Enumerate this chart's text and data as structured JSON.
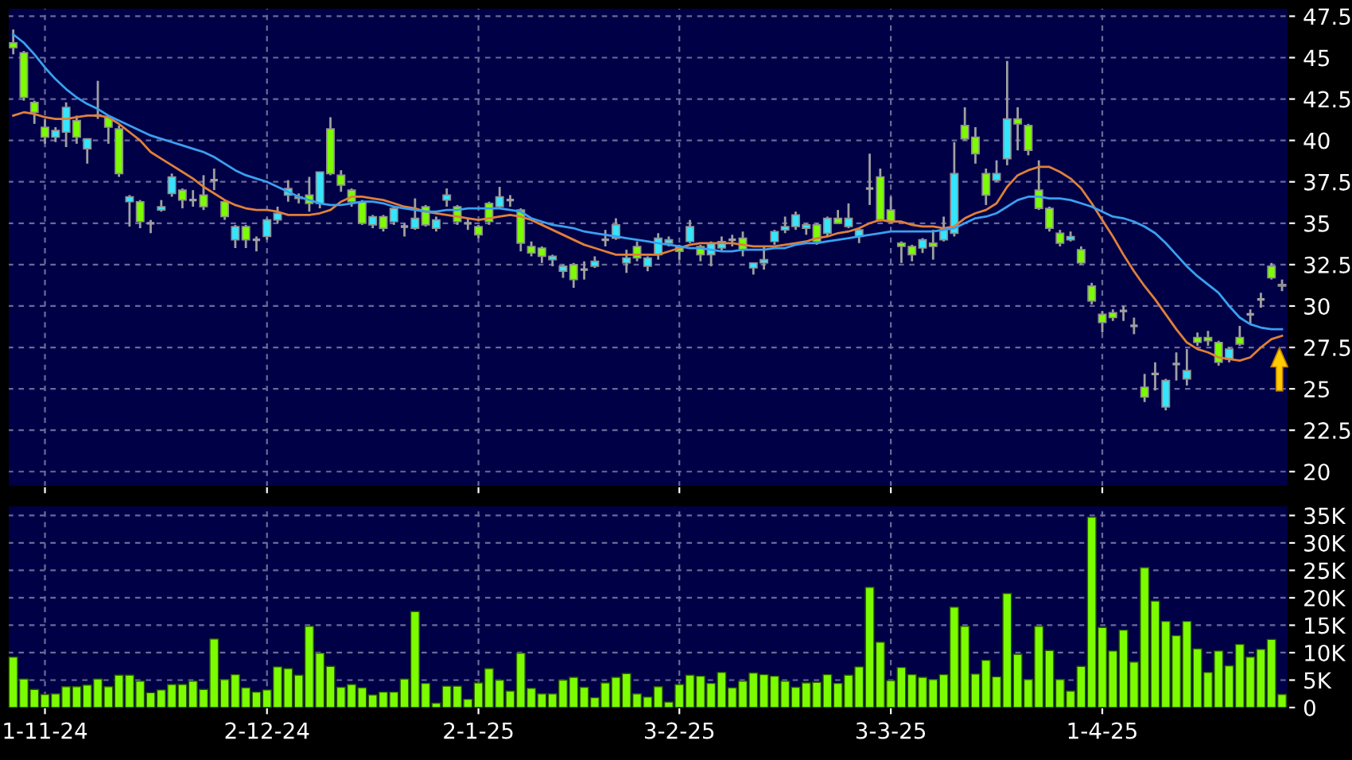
{
  "chart_data": [
    {
      "type": "candlestick",
      "categories": [
        null,
        null,
        null,
        null,
        null,
        null,
        null,
        null,
        null,
        null,
        null,
        null,
        null,
        null,
        null,
        null,
        null,
        null,
        null,
        null,
        null,
        null,
        null,
        null,
        null,
        null,
        null,
        null,
        null,
        null,
        null,
        null,
        null,
        null,
        null,
        null,
        null,
        null,
        null,
        null,
        null,
        null,
        null,
        null,
        null,
        null,
        null,
        null,
        null,
        null,
        null,
        null,
        null,
        null,
        null,
        null,
        null,
        null,
        null,
        null,
        null,
        null,
        null,
        null,
        null,
        null,
        null,
        null,
        null,
        null,
        null,
        null,
        null,
        null,
        null,
        null,
        null,
        null,
        null,
        null,
        null,
        null,
        null,
        null,
        null,
        null,
        null,
        null,
        null,
        null,
        null,
        null,
        null,
        null,
        null,
        null,
        null,
        null,
        null,
        null,
        null,
        null,
        null,
        null,
        null,
        null,
        null,
        null,
        null,
        null,
        null,
        null,
        null,
        null,
        null,
        null,
        null,
        null,
        null,
        null,
        null
      ],
      "ohlc": [
        [
          45.9,
          46.7,
          45.2,
          45.6
        ],
        [
          45.3,
          45.4,
          42.4,
          42.6
        ],
        [
          42.3,
          42.4,
          41.0,
          41.7
        ],
        [
          40.8,
          41.3,
          39.8,
          40.2
        ],
        [
          40.2,
          40.8,
          39.9,
          40.6
        ],
        [
          40.5,
          42.3,
          39.6,
          42.0
        ],
        [
          41.2,
          41.5,
          39.8,
          40.2
        ],
        [
          39.5,
          40.1,
          38.6,
          40.1
        ],
        [
          41.5,
          43.6,
          41.3,
          41.5
        ],
        [
          41.4,
          41.5,
          39.8,
          40.8
        ],
        [
          40.7,
          40.9,
          37.8,
          38.0
        ],
        [
          36.3,
          36.7,
          34.8,
          36.6
        ],
        [
          36.3,
          36.4,
          34.7,
          35.1
        ],
        [
          35.0,
          35.2,
          34.4,
          35.0
        ],
        [
          35.8,
          36.4,
          35.7,
          36.0
        ],
        [
          36.8,
          38.0,
          36.6,
          37.8
        ],
        [
          37.0,
          37.1,
          35.9,
          36.4
        ],
        [
          36.4,
          37.0,
          36.0,
          36.4
        ],
        [
          36.7,
          37.9,
          35.8,
          36.0
        ],
        [
          37.6,
          38.3,
          37.0,
          37.6
        ],
        [
          36.3,
          36.4,
          35.2,
          35.4
        ],
        [
          34.0,
          34.9,
          33.5,
          34.8
        ],
        [
          34.8,
          34.9,
          33.5,
          34.0
        ],
        [
          34.0,
          34.2,
          33.3,
          34.0
        ],
        [
          34.2,
          35.3,
          34.0,
          35.2
        ],
        [
          35.2,
          36.0,
          35.0,
          35.6
        ],
        [
          36.7,
          37.6,
          36.3,
          37.1
        ],
        [
          36.5,
          36.8,
          36.2,
          36.6
        ],
        [
          36.7,
          37.8,
          35.7,
          36.2
        ],
        [
          36.2,
          38.1,
          35.9,
          38.1
        ],
        [
          40.7,
          41.4,
          37.9,
          38.0
        ],
        [
          37.9,
          38.2,
          36.9,
          37.3
        ],
        [
          37.0,
          37.1,
          36.0,
          36.3
        ],
        [
          36.3,
          36.4,
          34.9,
          35.0
        ],
        [
          34.9,
          35.5,
          34.7,
          35.4
        ],
        [
          35.4,
          35.5,
          34.5,
          34.7
        ],
        [
          35.1,
          36.0,
          34.9,
          35.9
        ],
        [
          34.8,
          35.0,
          34.2,
          34.8
        ],
        [
          34.7,
          36.5,
          34.6,
          35.3
        ],
        [
          36.0,
          36.1,
          34.8,
          34.9
        ],
        [
          34.7,
          35.4,
          34.5,
          35.2
        ],
        [
          36.4,
          37.1,
          36.0,
          36.7
        ],
        [
          36.0,
          36.1,
          34.9,
          35.1
        ],
        [
          35.0,
          35.3,
          34.6,
          35.0
        ],
        [
          34.8,
          34.9,
          34.1,
          34.3
        ],
        [
          36.2,
          36.3,
          34.9,
          35.1
        ],
        [
          36.0,
          37.2,
          35.9,
          36.6
        ],
        [
          36.4,
          36.7,
          36.0,
          36.4
        ],
        [
          35.8,
          35.9,
          33.3,
          33.8
        ],
        [
          33.6,
          33.9,
          33.0,
          33.2
        ],
        [
          33.5,
          33.6,
          32.6,
          33.0
        ],
        [
          32.8,
          33.1,
          32.4,
          33.0
        ],
        [
          32.1,
          32.5,
          31.7,
          32.4
        ],
        [
          32.5,
          32.6,
          31.1,
          31.6
        ],
        [
          32.2,
          32.7,
          31.6,
          32.2
        ],
        [
          32.4,
          33.0,
          32.3,
          32.7
        ],
        [
          34.0,
          34.6,
          33.6,
          34.0
        ],
        [
          34.1,
          35.3,
          34.0,
          34.9
        ],
        [
          32.6,
          33.4,
          32.0,
          32.9
        ],
        [
          33.6,
          33.9,
          32.7,
          32.9
        ],
        [
          32.4,
          33.0,
          32.1,
          32.9
        ],
        [
          33.1,
          34.4,
          32.8,
          34.1
        ],
        [
          33.8,
          34.2,
          33.6,
          34.0
        ],
        [
          33.6,
          33.7,
          32.8,
          33.3
        ],
        [
          33.9,
          35.2,
          33.8,
          34.8
        ],
        [
          33.6,
          33.7,
          32.7,
          33.1
        ],
        [
          33.1,
          33.9,
          32.4,
          33.8
        ],
        [
          33.5,
          34.2,
          33.3,
          33.9
        ],
        [
          34.0,
          34.3,
          33.6,
          34.0
        ],
        [
          34.1,
          34.5,
          33.0,
          33.4
        ],
        [
          32.3,
          32.6,
          31.9,
          32.6
        ],
        [
          32.6,
          33.6,
          32.2,
          32.8
        ],
        [
          33.9,
          34.6,
          33.7,
          34.5
        ],
        [
          34.6,
          35.4,
          34.4,
          34.8
        ],
        [
          34.8,
          35.7,
          34.6,
          35.5
        ],
        [
          34.7,
          35.0,
          34.3,
          34.9
        ],
        [
          34.9,
          35.0,
          33.7,
          33.9
        ],
        [
          34.4,
          35.4,
          34.2,
          35.3
        ],
        [
          35.3,
          35.8,
          35.0,
          35.0
        ],
        [
          34.8,
          36.2,
          34.7,
          35.3
        ],
        [
          34.2,
          34.7,
          33.8,
          34.6
        ],
        [
          37.1,
          39.2,
          36.1,
          37.1
        ],
        [
          37.8,
          38.3,
          35.1,
          35.2
        ],
        [
          35.8,
          36.6,
          35.0,
          35.1
        ],
        [
          33.8,
          33.9,
          32.6,
          33.6
        ],
        [
          33.6,
          33.7,
          32.7,
          33.1
        ],
        [
          33.5,
          34.1,
          33.2,
          34.0
        ],
        [
          33.8,
          34.6,
          32.8,
          33.6
        ],
        [
          34.0,
          35.4,
          33.9,
          34.6
        ],
        [
          34.4,
          39.9,
          34.2,
          38.0
        ],
        [
          40.9,
          42.0,
          40.0,
          40.1
        ],
        [
          40.2,
          40.8,
          38.6,
          39.2
        ],
        [
          38.0,
          38.3,
          36.1,
          36.7
        ],
        [
          37.6,
          38.8,
          37.5,
          38.0
        ],
        [
          38.9,
          44.8,
          38.5,
          41.3
        ],
        [
          41.3,
          42.0,
          39.4,
          41.0
        ],
        [
          40.9,
          41.0,
          39.1,
          39.4
        ],
        [
          37.0,
          38.8,
          35.8,
          35.9
        ],
        [
          35.9,
          36.0,
          34.5,
          34.7
        ],
        [
          34.4,
          34.6,
          33.6,
          33.8
        ],
        [
          34.0,
          34.5,
          33.9,
          34.2
        ],
        [
          33.4,
          33.6,
          32.5,
          32.6
        ],
        [
          31.2,
          31.4,
          30.1,
          30.3
        ],
        [
          29.5,
          29.7,
          28.4,
          29.0
        ],
        [
          29.6,
          29.8,
          29.1,
          29.3
        ],
        [
          29.7,
          30.0,
          29.1,
          29.7
        ],
        [
          28.8,
          29.3,
          28.3,
          28.8
        ],
        [
          25.1,
          25.9,
          24.2,
          24.5
        ],
        [
          25.9,
          26.6,
          24.9,
          25.9
        ],
        [
          23.9,
          25.6,
          23.7,
          25.5
        ],
        [
          26.5,
          27.2,
          25.5,
          26.5
        ],
        [
          25.6,
          27.4,
          25.2,
          26.1
        ],
        [
          28.1,
          28.4,
          27.6,
          27.8
        ],
        [
          28.1,
          28.5,
          27.6,
          27.9
        ],
        [
          27.8,
          27.9,
          26.4,
          26.6
        ],
        [
          26.8,
          27.5,
          26.6,
          27.4
        ],
        [
          28.1,
          28.8,
          27.6,
          27.7
        ],
        [
          29.5,
          29.8,
          28.9,
          29.5
        ],
        [
          30.4,
          30.8,
          29.9,
          30.4
        ],
        [
          32.4,
          32.6,
          31.6,
          31.7
        ],
        [
          31.2,
          31.6,
          30.9,
          31.3
        ]
      ],
      "colors": [
        "#7cfc00",
        "#7cfc00",
        "#7cfc00",
        "#7cfc00",
        "#33e6ff",
        "#33e6ff",
        "#7cfc00",
        "#33e6ff",
        "#a0a0a0",
        "#7cfc00",
        "#7cfc00",
        "#33e6ff",
        "#7cfc00",
        "#a0a0a0",
        "#33e6ff",
        "#33e6ff",
        "#7cfc00",
        "#a0a0a0",
        "#7cfc00",
        "#a0a0a0",
        "#7cfc00",
        "#33e6ff",
        "#7cfc00",
        "#a0a0a0",
        "#33e6ff",
        "#33e6ff",
        "#33e6ff",
        "#33e6ff",
        "#7cfc00",
        "#33e6ff",
        "#7cfc00",
        "#7cfc00",
        "#7cfc00",
        "#7cfc00",
        "#33e6ff",
        "#7cfc00",
        "#33e6ff",
        "#a0a0a0",
        "#33e6ff",
        "#7cfc00",
        "#33e6ff",
        "#33e6ff",
        "#7cfc00",
        "#a0a0a0",
        "#7cfc00",
        "#7cfc00",
        "#33e6ff",
        "#a0a0a0",
        "#7cfc00",
        "#7cfc00",
        "#7cfc00",
        "#33e6ff",
        "#33e6ff",
        "#7cfc00",
        "#a0a0a0",
        "#33e6ff",
        "#a0a0a0",
        "#33e6ff",
        "#33e6ff",
        "#7cfc00",
        "#33e6ff",
        "#33e6ff",
        "#33e6ff",
        "#7cfc00",
        "#33e6ff",
        "#7cfc00",
        "#33e6ff",
        "#33e6ff",
        "#a0a0a0",
        "#7cfc00",
        "#33e6ff",
        "#33e6ff",
        "#33e6ff",
        "#33e6ff",
        "#33e6ff",
        "#33e6ff",
        "#7cfc00",
        "#33e6ff",
        "#7cfc00",
        "#33e6ff",
        "#33e6ff",
        "#a0a0a0",
        "#7cfc00",
        "#7cfc00",
        "#7cfc00",
        "#7cfc00",
        "#33e6ff",
        "#7cfc00",
        "#33e6ff",
        "#33e6ff",
        "#7cfc00",
        "#7cfc00",
        "#7cfc00",
        "#33e6ff",
        "#33e6ff",
        "#7cfc00",
        "#7cfc00",
        "#7cfc00",
        "#7cfc00",
        "#7cfc00",
        "#33e6ff",
        "#7cfc00",
        "#7cfc00",
        "#7cfc00",
        "#7cfc00",
        "#a0a0a0",
        "#a0a0a0",
        "#7cfc00",
        "#a0a0a0",
        "#33e6ff",
        "#a0a0a0",
        "#33e6ff",
        "#7cfc00",
        "#7cfc00",
        "#7cfc00",
        "#33e6ff",
        "#7cfc00",
        "#a0a0a0",
        "#a0a0a0",
        "#7cfc00",
        "#a0a0a0"
      ],
      "series": [
        {
          "type": "line",
          "color": "#e0803a",
          "values": [
            41.5,
            41.7,
            41.6,
            41.4,
            41.3,
            41.3,
            41.4,
            41.5,
            41.5,
            41.4,
            41.0,
            40.5,
            40.0,
            39.3,
            38.9,
            38.5,
            38.1,
            37.7,
            37.2,
            36.8,
            36.4,
            36.1,
            35.9,
            35.8,
            35.8,
            35.7,
            35.5,
            35.5,
            35.5,
            35.6,
            35.8,
            36.3,
            36.6,
            36.6,
            36.5,
            36.4,
            36.2,
            36.0,
            35.9,
            35.7,
            35.6,
            35.5,
            35.4,
            35.3,
            35.2,
            35.3,
            35.4,
            35.5,
            35.4,
            35.2,
            34.9,
            34.6,
            34.3,
            34.0,
            33.7,
            33.5,
            33.3,
            33.1,
            33.1,
            33.1,
            33.1,
            33.1,
            33.3,
            33.5,
            33.7,
            33.8,
            33.8,
            33.8,
            33.8,
            33.7,
            33.6,
            33.6,
            33.6,
            33.7,
            33.8,
            33.9,
            34.1,
            34.2,
            34.4,
            34.5,
            34.7,
            35.0,
            35.2,
            35.1,
            35.1,
            34.9,
            34.8,
            34.8,
            34.7,
            34.8,
            35.3,
            35.6,
            35.8,
            36.2,
            37.2,
            37.9,
            38.2,
            38.4,
            38.4,
            38.1,
            37.7,
            37.1,
            36.2,
            35.2,
            34.2,
            33.1,
            32.1,
            31.2,
            30.4,
            29.5,
            28.6,
            27.8,
            27.4,
            27.2,
            26.9,
            26.8,
            26.7,
            26.9,
            27.5,
            28.0,
            28.2
          ]
        },
        {
          "type": "line",
          "color": "#3aa0f0",
          "values": [
            46.4,
            45.9,
            45.2,
            44.4,
            43.7,
            43.1,
            42.6,
            42.2,
            41.9,
            41.5,
            41.2,
            40.9,
            40.6,
            40.3,
            40.1,
            39.9,
            39.7,
            39.5,
            39.3,
            39.0,
            38.6,
            38.2,
            37.9,
            37.7,
            37.5,
            37.2,
            36.9,
            36.6,
            36.4,
            36.2,
            36.1,
            36.1,
            36.2,
            36.3,
            36.3,
            36.2,
            36.0,
            35.9,
            35.8,
            35.7,
            35.7,
            35.8,
            35.8,
            35.9,
            35.9,
            35.9,
            35.9,
            35.8,
            35.7,
            35.3,
            35.1,
            34.9,
            34.8,
            34.7,
            34.5,
            34.4,
            34.3,
            34.2,
            34.1,
            34.0,
            33.9,
            33.8,
            33.7,
            33.6,
            33.5,
            33.5,
            33.4,
            33.3,
            33.3,
            33.4,
            33.4,
            33.4,
            33.5,
            33.5,
            33.7,
            33.8,
            33.8,
            33.9,
            34.0,
            34.1,
            34.2,
            34.3,
            34.4,
            34.5,
            34.5,
            34.5,
            34.5,
            34.5,
            34.6,
            34.7,
            35.0,
            35.3,
            35.4,
            35.6,
            36.0,
            36.4,
            36.6,
            36.6,
            36.5,
            36.5,
            36.4,
            36.2,
            36.0,
            35.7,
            35.4,
            35.3,
            35.1,
            34.8,
            34.4,
            33.8,
            33.1,
            32.4,
            31.8,
            31.3,
            30.8,
            30.0,
            29.3,
            28.9,
            28.7,
            28.6,
            28.6
          ]
        }
      ],
      "ylim": [
        19.1,
        48.0
      ],
      "yticks": [
        20,
        22.5,
        25,
        27.5,
        30,
        32.5,
        35,
        37.5,
        40,
        42.5,
        45,
        47.5
      ],
      "grid": true,
      "tick_labels": "y"
    },
    {
      "type": "bar",
      "categories": [
        null,
        null,
        null,
        "1-11-24",
        null,
        null,
        null,
        null,
        null,
        null,
        null,
        null,
        null,
        null,
        null,
        null,
        null,
        null,
        null,
        null,
        null,
        null,
        null,
        null,
        "2-12-24",
        null,
        null,
        null,
        null,
        null,
        null,
        null,
        null,
        null,
        null,
        null,
        null,
        null,
        null,
        null,
        null,
        null,
        null,
        null,
        "2-1-25",
        null,
        null,
        null,
        null,
        null,
        null,
        null,
        null,
        null,
        null,
        null,
        null,
        null,
        null,
        null,
        null,
        null,
        null,
        "3-2-25",
        null,
        null,
        null,
        null,
        null,
        null,
        null,
        null,
        null,
        null,
        null,
        null,
        null,
        null,
        null,
        null,
        null,
        null,
        null,
        "3-3-25",
        null,
        null,
        null,
        null,
        null,
        null,
        null,
        null,
        null,
        null,
        null,
        null,
        null,
        null,
        null,
        null,
        null,
        null,
        null,
        "1-4-25",
        null,
        null,
        null,
        null,
        null,
        null,
        null,
        null,
        null,
        null,
        null,
        null,
        null,
        null,
        null,
        null,
        null
      ],
      "values": [
        9.2,
        5.2,
        3.3,
        2.4,
        2.5,
        3.8,
        3.8,
        4.1,
        5.2,
        3.8,
        5.9,
        5.9,
        4.8,
        2.7,
        3.2,
        4.2,
        4.2,
        4.8,
        3.3,
        12.5,
        5.1,
        6.0,
        3.6,
        2.8,
        3.2,
        7.4,
        7.1,
        5.9,
        14.8,
        9.9,
        7.5,
        3.7,
        4.2,
        3.6,
        2.3,
        2.8,
        2.8,
        5.2,
        17.5,
        4.4,
        0.8,
        3.9,
        3.9,
        1.5,
        4.5,
        7.1,
        5.0,
        3.0,
        9.9,
        3.5,
        2.5,
        2.5,
        5.0,
        5.5,
        3.7,
        1.8,
        4.5,
        5.5,
        6.2,
        2.5,
        1.9,
        3.8,
        1.0,
        4.2,
        5.9,
        5.7,
        4.4,
        6.4,
        3.6,
        4.8,
        6.3,
        6.0,
        5.7,
        4.8,
        3.7,
        4.5,
        4.6,
        6.0,
        4.4,
        5.9,
        7.4,
        21.9,
        11.9,
        4.9,
        7.3,
        6.0,
        5.5,
        5.1,
        6.0,
        18.3,
        14.8,
        6.1,
        8.6,
        5.6,
        20.8,
        9.7,
        5.1,
        14.8,
        10.4,
        5.1,
        3.0,
        7.5,
        34.7,
        14.6,
        10.3,
        14.1,
        8.3,
        25.5,
        19.4,
        15.7,
        13.1,
        15.7,
        10.7,
        6.4,
        10.3,
        7.6,
        11.5,
        9.2,
        10.6,
        12.4,
        2.4
      ],
      "color": "#7cfc00",
      "ylim": [
        0,
        36.8
      ],
      "yticks": [
        0,
        {
          "value": 5,
          "label": "5K"
        },
        {
          "value": 10,
          "label": "10K"
        },
        {
          "value": 15,
          "label": "15K"
        },
        {
          "value": 20,
          "label": "20K"
        },
        {
          "value": 25,
          "label": "25K"
        },
        {
          "value": 30,
          "label": "30K"
        },
        {
          "value": 35,
          "label": "35K"
        }
      ],
      "grid": true
    }
  ]
}
